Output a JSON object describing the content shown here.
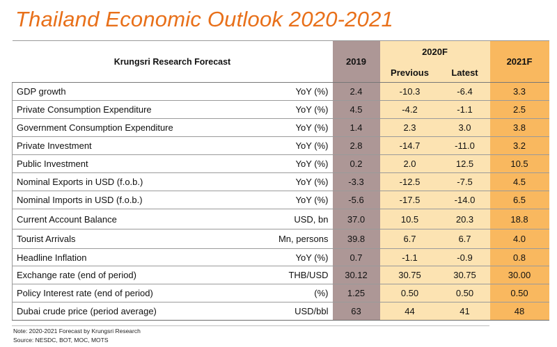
{
  "title": "Thailand Economic Outlook 2020-2021",
  "table": {
    "header": {
      "forecast_label": "Krungsri Research Forecast",
      "col_2019": "2019",
      "col_2020": "2020F",
      "col_2020_previous": "Previous",
      "col_2020_latest": "Latest",
      "col_2021": "2021F"
    },
    "rows": [
      {
        "label": "GDP growth",
        "unit": "YoY (%)",
        "y2019": "2.4",
        "previous": "-10.3",
        "latest": "-6.4",
        "y2021": "3.3"
      },
      {
        "label": "Private Consumption Expenditure",
        "unit": "YoY (%)",
        "y2019": "4.5",
        "previous": "-4.2",
        "latest": "-1.1",
        "y2021": "2.5"
      },
      {
        "label": "Government Consumption Expenditure",
        "unit": "YoY (%)",
        "y2019": "1.4",
        "previous": "2.3",
        "latest": "3.0",
        "y2021": "3.8"
      },
      {
        "label": "Private Investment",
        "unit": "YoY (%)",
        "y2019": "2.8",
        "previous": "-14.7",
        "latest": "-11.0",
        "y2021": "3.2"
      },
      {
        "label": "Public Investment",
        "unit": "YoY (%)",
        "y2019": "0.2",
        "previous": "2.0",
        "latest": "12.5",
        "y2021": "10.5"
      },
      {
        "label": "Nominal Exports in USD (f.o.b.)",
        "unit": "YoY (%)",
        "y2019": "-3.3",
        "previous": "-12.5",
        "latest": "-7.5",
        "y2021": "4.5"
      },
      {
        "label": "Nominal Imports in USD (f.o.b.)",
        "unit": "YoY (%)",
        "y2019": "-5.6",
        "previous": "-17.5",
        "latest": "-14.0",
        "y2021": "6.5"
      },
      {
        "label": "Current Account Balance",
        "unit": "USD, bn",
        "y2019": "37.0",
        "previous": "10.5",
        "latest": "20.3",
        "y2021": "18.8"
      },
      {
        "label": "Tourist Arrivals",
        "unit": "Mn, persons",
        "y2019": "39.8",
        "previous": "6.7",
        "latest": "6.7",
        "y2021": "4.0"
      },
      {
        "label": "Headline Inflation",
        "unit": "YoY (%)",
        "y2019": "0.7",
        "previous": "-1.1",
        "latest": "-0.9",
        "y2021": "0.8"
      },
      {
        "label": "Exchange rate (end of period)",
        "unit": "THB/USD",
        "y2019": "30.12",
        "previous": "30.75",
        "latest": "30.75",
        "y2021": "30.00"
      },
      {
        "label": "Policy Interest rate (end of period)",
        "unit": "(%)",
        "y2019": "1.25",
        "previous": "0.50",
        "latest": "0.50",
        "y2021": "0.50"
      },
      {
        "label": "Dubai crude price (period average)",
        "unit": "USD/bbl",
        "y2019": "63",
        "previous": "44",
        "latest": "41",
        "y2021": "48"
      }
    ]
  },
  "notes": {
    "note": "Note: 2020-2021 Forecast by Krungsri Research",
    "source": "Source: NESDC, BOT, MOC, MOTS"
  },
  "colors": {
    "title": "#e8701a",
    "col_2019": "#ad9796",
    "col_2020": "#fce3b2",
    "col_2021": "#f9b85f"
  }
}
